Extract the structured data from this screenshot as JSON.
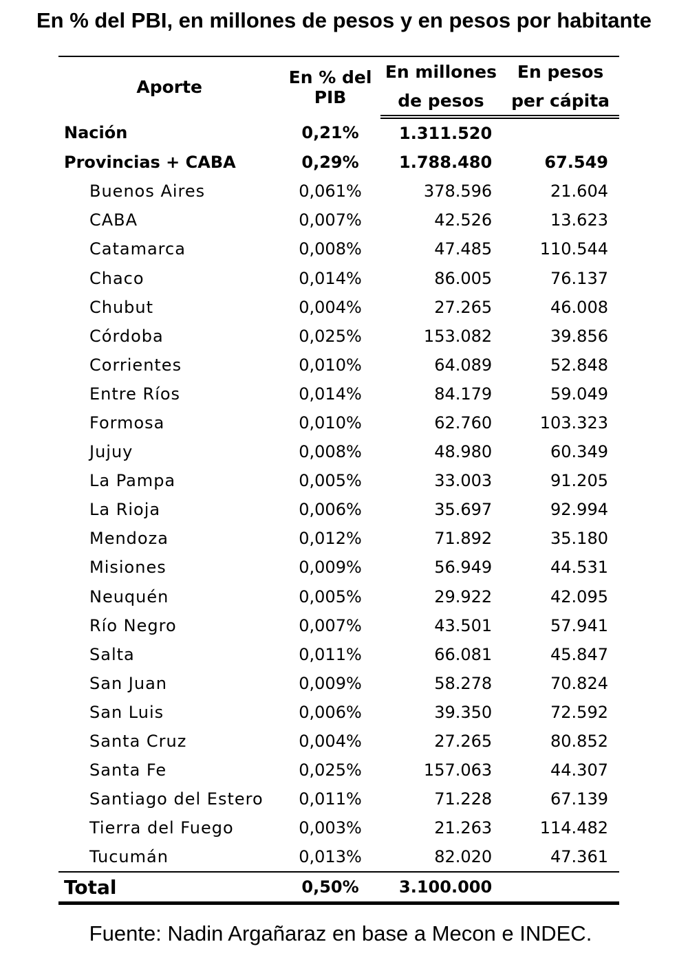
{
  "title": "En % del PBI, en millones de pesos y en pesos por habitante",
  "table": {
    "headers": {
      "aporte": "Aporte",
      "pct": "En % del PIB",
      "millones_1": "En millones",
      "millones_2": "de pesos",
      "percapita_1": "En pesos",
      "percapita_2": "per cápita"
    },
    "rows": [
      {
        "name": "Nación",
        "pct": "0,21%",
        "millones": "1.311.520",
        "percapita": ""
      },
      {
        "name": "Provincias + CABA",
        "pct": "0,29%",
        "millones": "1.788.480",
        "percapita": "67.549"
      },
      {
        "name": "Buenos Aires",
        "pct": "0,061%",
        "millones": "378.596",
        "percapita": "21.604"
      },
      {
        "name": "CABA",
        "pct": "0,007%",
        "millones": "42.526",
        "percapita": "13.623"
      },
      {
        "name": "Catamarca",
        "pct": "0,008%",
        "millones": "47.485",
        "percapita": "110.544"
      },
      {
        "name": "Chaco",
        "pct": "0,014%",
        "millones": "86.005",
        "percapita": "76.137"
      },
      {
        "name": "Chubut",
        "pct": "0,004%",
        "millones": "27.265",
        "percapita": "46.008"
      },
      {
        "name": "Córdoba",
        "pct": "0,025%",
        "millones": "153.082",
        "percapita": "39.856"
      },
      {
        "name": "Corrientes",
        "pct": "0,010%",
        "millones": "64.089",
        "percapita": "52.848"
      },
      {
        "name": "Entre Ríos",
        "pct": "0,014%",
        "millones": "84.179",
        "percapita": "59.049"
      },
      {
        "name": "Formosa",
        "pct": "0,010%",
        "millones": "62.760",
        "percapita": "103.323"
      },
      {
        "name": "Jujuy",
        "pct": "0,008%",
        "millones": "48.980",
        "percapita": "60.349"
      },
      {
        "name": "La Pampa",
        "pct": "0,005%",
        "millones": "33.003",
        "percapita": "91.205"
      },
      {
        "name": "La Rioja",
        "pct": "0,006%",
        "millones": "35.697",
        "percapita": "92.994"
      },
      {
        "name": "Mendoza",
        "pct": "0,012%",
        "millones": "71.892",
        "percapita": "35.180"
      },
      {
        "name": "Misiones",
        "pct": "0,009%",
        "millones": "56.949",
        "percapita": "44.531"
      },
      {
        "name": "Neuquén",
        "pct": "0,005%",
        "millones": "29.922",
        "percapita": "42.095"
      },
      {
        "name": "Río Negro",
        "pct": "0,007%",
        "millones": "43.501",
        "percapita": "57.941"
      },
      {
        "name": "Salta",
        "pct": "0,011%",
        "millones": "66.081",
        "percapita": "45.847"
      },
      {
        "name": "San Juan",
        "pct": "0,009%",
        "millones": "58.278",
        "percapita": "70.824"
      },
      {
        "name": "San Luis",
        "pct": "0,006%",
        "millones": "39.350",
        "percapita": "72.592"
      },
      {
        "name": "Santa Cruz",
        "pct": "0,004%",
        "millones": "27.265",
        "percapita": "80.852"
      },
      {
        "name": "Santa Fe",
        "pct": "0,025%",
        "millones": "157.063",
        "percapita": "44.307"
      },
      {
        "name": "Santiago del Estero",
        "pct": "0,011%",
        "millones": "71.228",
        "percapita": "67.139"
      },
      {
        "name": "Tierra del Fuego",
        "pct": "0,003%",
        "millones": "21.263",
        "percapita": "114.482"
      },
      {
        "name": "Tucumán",
        "pct": "0,013%",
        "millones": "82.020",
        "percapita": "47.361"
      }
    ],
    "total": {
      "name": "Total",
      "pct": "0,50%",
      "millones": "3.100.000",
      "percapita": ""
    }
  },
  "source": "Fuente: Nadin Argañaraz en base a Mecon e INDEC."
}
